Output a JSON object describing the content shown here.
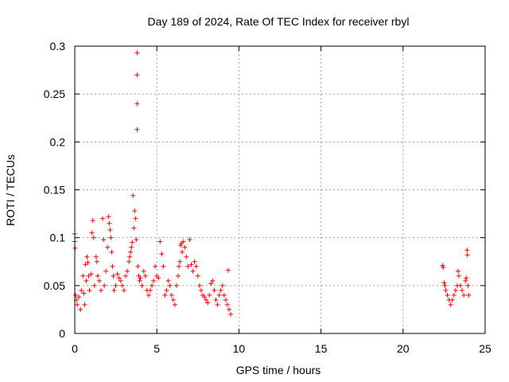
{
  "chart_data": {
    "type": "scatter",
    "title": "Day 189 of 2024, Rate Of TEC Index for receiver rbyl",
    "xlabel": "GPS time / hours",
    "ylabel": "ROTI / TECUs",
    "xlim": [
      0,
      25
    ],
    "ylim": [
      0,
      0.3
    ],
    "xticks": [
      0,
      5,
      10,
      15,
      20,
      25
    ],
    "yticks": [
      0,
      0.05,
      0.1,
      0.15,
      0.2,
      0.25,
      0.3
    ],
    "xtick_labels": [
      "0",
      "5",
      "10",
      "15",
      "20",
      "25"
    ],
    "ytick_labels": [
      "0",
      "0.05",
      "0.1",
      "0.15",
      "0.2",
      "0.25",
      "0.3"
    ],
    "grid": true,
    "marker": "+",
    "color": "#ff0000",
    "series": [
      {
        "name": "ROTI",
        "points": [
          [
            0.0,
            0.104
          ],
          [
            0.0,
            0.096
          ],
          [
            0.02,
            0.089
          ],
          [
            0.05,
            0.04
          ],
          [
            0.1,
            0.035
          ],
          [
            0.15,
            0.03
          ],
          [
            0.25,
            0.038
          ],
          [
            0.35,
            0.025
          ],
          [
            0.4,
            0.045
          ],
          [
            0.5,
            0.06
          ],
          [
            0.55,
            0.042
          ],
          [
            0.6,
            0.03
          ],
          [
            0.65,
            0.072
          ],
          [
            0.7,
            0.055
          ],
          [
            0.75,
            0.08
          ],
          [
            0.8,
            0.074
          ],
          [
            0.85,
            0.06
          ],
          [
            0.9,
            0.045
          ],
          [
            1.0,
            0.062
          ],
          [
            1.05,
            0.105
          ],
          [
            1.1,
            0.118
          ],
          [
            1.15,
            0.1
          ],
          [
            1.2,
            0.05
          ],
          [
            1.3,
            0.08
          ],
          [
            1.35,
            0.075
          ],
          [
            1.4,
            0.06
          ],
          [
            1.5,
            0.055
          ],
          [
            1.6,
            0.045
          ],
          [
            1.7,
            0.12
          ],
          [
            1.75,
            0.098
          ],
          [
            1.8,
            0.05
          ],
          [
            1.9,
            0.065
          ],
          [
            2.0,
            0.09
          ],
          [
            2.05,
            0.122
          ],
          [
            2.1,
            0.115
          ],
          [
            2.15,
            0.108
          ],
          [
            2.2,
            0.1
          ],
          [
            2.25,
            0.085
          ],
          [
            2.3,
            0.07
          ],
          [
            2.35,
            0.06
          ],
          [
            2.4,
            0.045
          ],
          [
            2.5,
            0.05
          ],
          [
            2.6,
            0.062
          ],
          [
            2.7,
            0.058
          ],
          [
            2.8,
            0.055
          ],
          [
            2.9,
            0.05
          ],
          [
            3.0,
            0.045
          ],
          [
            3.1,
            0.06
          ],
          [
            3.2,
            0.065
          ],
          [
            3.3,
            0.075
          ],
          [
            3.35,
            0.08
          ],
          [
            3.4,
            0.085
          ],
          [
            3.45,
            0.09
          ],
          [
            3.5,
            0.095
          ],
          [
            3.55,
            0.144
          ],
          [
            3.6,
            0.11
          ],
          [
            3.65,
            0.128
          ],
          [
            3.7,
            0.12
          ],
          [
            3.75,
            0.098
          ],
          [
            3.8,
            0.293
          ],
          [
            3.8,
            0.27
          ],
          [
            3.8,
            0.24
          ],
          [
            3.8,
            0.213
          ],
          [
            3.85,
            0.07
          ],
          [
            3.9,
            0.06
          ],
          [
            3.95,
            0.055
          ],
          [
            4.0,
            0.058
          ],
          [
            4.1,
            0.05
          ],
          [
            4.2,
            0.065
          ],
          [
            4.3,
            0.06
          ],
          [
            4.4,
            0.045
          ],
          [
            4.5,
            0.04
          ],
          [
            4.6,
            0.045
          ],
          [
            4.7,
            0.05
          ],
          [
            4.8,
            0.055
          ],
          [
            4.9,
            0.07
          ],
          [
            5.0,
            0.06
          ],
          [
            5.1,
            0.058
          ],
          [
            5.2,
            0.096
          ],
          [
            5.3,
            0.083
          ],
          [
            5.4,
            0.07
          ],
          [
            5.5,
            0.04
          ],
          [
            5.6,
            0.045
          ],
          [
            5.7,
            0.055
          ],
          [
            5.8,
            0.05
          ],
          [
            5.9,
            0.04
          ],
          [
            6.0,
            0.035
          ],
          [
            6.1,
            0.03
          ],
          [
            6.2,
            0.05
          ],
          [
            6.3,
            0.06
          ],
          [
            6.35,
            0.07
          ],
          [
            6.4,
            0.075
          ],
          [
            6.45,
            0.092
          ],
          [
            6.5,
            0.094
          ],
          [
            6.55,
            0.085
          ],
          [
            6.6,
            0.096
          ],
          [
            6.7,
            0.09
          ],
          [
            6.8,
            0.08
          ],
          [
            6.9,
            0.07
          ],
          [
            7.0,
            0.098
          ],
          [
            7.1,
            0.072
          ],
          [
            7.2,
            0.065
          ],
          [
            7.3,
            0.075
          ],
          [
            7.4,
            0.07
          ],
          [
            7.5,
            0.06
          ],
          [
            7.6,
            0.05
          ],
          [
            7.7,
            0.045
          ],
          [
            7.8,
            0.04
          ],
          [
            7.9,
            0.038
          ],
          [
            8.0,
            0.035
          ],
          [
            8.1,
            0.032
          ],
          [
            8.2,
            0.04
          ],
          [
            8.3,
            0.052
          ],
          [
            8.4,
            0.055
          ],
          [
            8.5,
            0.045
          ],
          [
            8.6,
            0.035
          ],
          [
            8.7,
            0.03
          ],
          [
            8.8,
            0.04
          ],
          [
            8.9,
            0.045
          ],
          [
            9.0,
            0.05
          ],
          [
            9.1,
            0.04
          ],
          [
            9.2,
            0.035
          ],
          [
            9.3,
            0.03
          ],
          [
            9.35,
            0.066
          ],
          [
            9.4,
            0.025
          ],
          [
            9.5,
            0.02
          ],
          [
            22.4,
            0.071
          ],
          [
            22.45,
            0.069
          ],
          [
            22.5,
            0.053
          ],
          [
            22.55,
            0.05
          ],
          [
            22.6,
            0.045
          ],
          [
            22.7,
            0.04
          ],
          [
            22.8,
            0.035
          ],
          [
            22.9,
            0.03
          ],
          [
            23.0,
            0.035
          ],
          [
            23.1,
            0.04
          ],
          [
            23.2,
            0.045
          ],
          [
            23.3,
            0.05
          ],
          [
            23.35,
            0.065
          ],
          [
            23.4,
            0.06
          ],
          [
            23.5,
            0.05
          ],
          [
            23.6,
            0.045
          ],
          [
            23.7,
            0.04
          ],
          [
            23.8,
            0.055
          ],
          [
            23.85,
            0.058
          ],
          [
            23.9,
            0.087
          ],
          [
            23.92,
            0.082
          ],
          [
            23.95,
            0.05
          ],
          [
            24.0,
            0.04
          ]
        ]
      }
    ]
  }
}
